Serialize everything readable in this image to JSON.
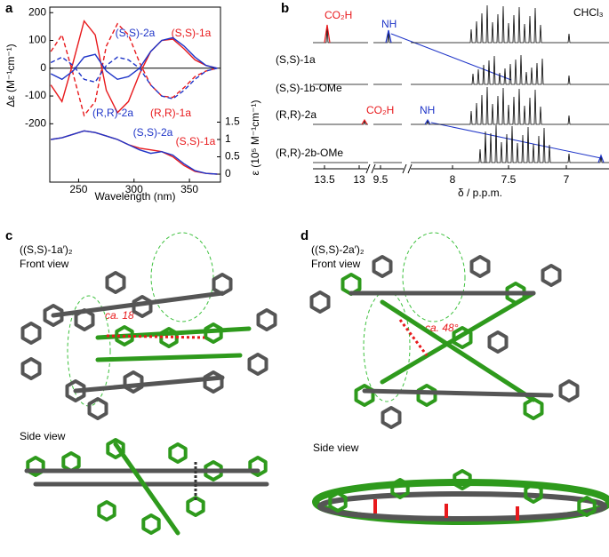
{
  "chart_data": {
    "type": "line",
    "x": [
      225,
      235,
      245,
      255,
      265,
      275,
      285,
      295,
      305,
      315,
      325,
      335,
      345,
      355,
      365,
      375
    ],
    "xlim": [
      224,
      378
    ],
    "xticks": [
      250,
      300,
      350
    ],
    "ylim": [
      -410,
      220
    ],
    "yticks": [
      -200,
      -100,
      0,
      100,
      200
    ],
    "y2lim": [
      -0.23,
      4.82
    ],
    "y2ticks": [
      0,
      0.5,
      1,
      1.5
    ],
    "xlabel": "Wavelength (nm)",
    "ylabel": "Δε (M⁻¹cm⁻¹)",
    "y2label": "ε (10⁵ M⁻¹cm⁻¹)",
    "series": [
      {
        "name": "(S,S)-1a",
        "color": "#e8191c",
        "dash": false,
        "values": [
          -60,
          -120,
          20,
          170,
          120,
          -80,
          -160,
          -120,
          -20,
          60,
          100,
          105,
          70,
          30,
          10,
          0
        ]
      },
      {
        "name": "(R,R)-1a",
        "color": "#e8191c",
        "dash": true,
        "values": [
          60,
          120,
          -20,
          -170,
          -120,
          80,
          160,
          120,
          20,
          -60,
          -100,
          -105,
          -70,
          -30,
          -10,
          0
        ]
      },
      {
        "name": "(S,S)-2a",
        "color": "#1f35c8",
        "dash": false,
        "values": [
          -20,
          -40,
          -10,
          40,
          50,
          -10,
          -40,
          -30,
          0,
          60,
          100,
          110,
          80,
          40,
          10,
          0
        ]
      },
      {
        "name": "(R,R)-2a",
        "color": "#1f35c8",
        "dash": true,
        "values": [
          20,
          40,
          10,
          -40,
          -50,
          10,
          40,
          30,
          0,
          -60,
          -100,
          -110,
          -80,
          -40,
          -10,
          0
        ]
      },
      {
        "name": "(S,S)-1a",
        "color": "#e8191c",
        "dash": false,
        "axis": "y2",
        "values": [
          1.0,
          1.05,
          1.15,
          1.25,
          1.2,
          1.1,
          1.0,
          0.85,
          0.75,
          0.7,
          0.65,
          0.5,
          0.25,
          0.08,
          0.02,
          0
        ]
      },
      {
        "name": "(S,S)-2a",
        "color": "#1f35c8",
        "dash": false,
        "axis": "y2",
        "values": [
          1.0,
          1.05,
          1.15,
          1.25,
          1.2,
          1.1,
          1.0,
          0.85,
          0.7,
          0.6,
          0.65,
          0.55,
          0.3,
          0.1,
          0.02,
          0
        ]
      }
    ]
  },
  "panels": {
    "a": "a",
    "b": "b",
    "c": "c",
    "d": "d"
  },
  "nmr": {
    "samples": [
      "(S,S)-1a",
      "(S,S)-1b-OMe",
      "(R,R)-2a",
      "(R,R)-2b-OMe"
    ],
    "xticks": [
      "13.5",
      "13",
      "9.5",
      "8",
      "7.5",
      "7"
    ],
    "xlabel": "δ / p.p.m.",
    "solvent": "CHCl₃",
    "co2h_top": "CO₂H",
    "nh_top": "NH",
    "co2h_mid": "CO₂H",
    "nh_mid": "NH"
  },
  "structures": {
    "c": {
      "title": "((S,S)-1a′)₂",
      "front": "Front view",
      "angle": "ca. 18°",
      "side": "Side view"
    },
    "d": {
      "title": "((S,S)-2a′)₂",
      "front": "Front view",
      "angle": "ca. 48°",
      "side": "Side view"
    }
  }
}
